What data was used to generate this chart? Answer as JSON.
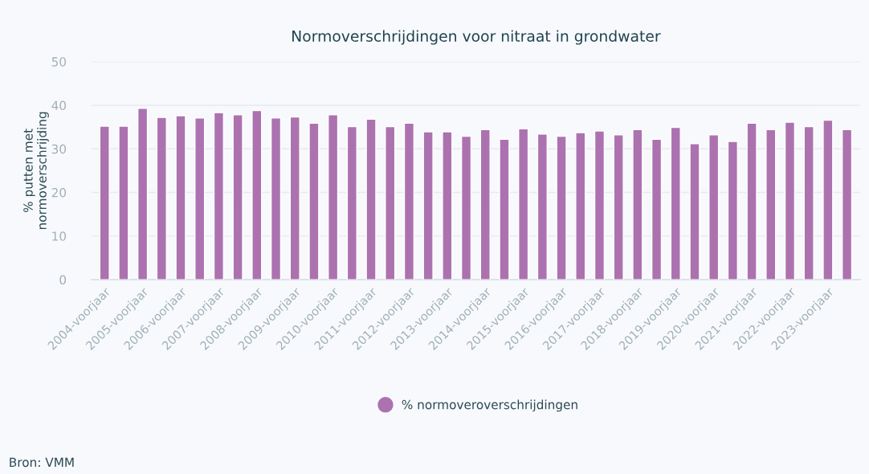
{
  "chart_data": {
    "type": "bar",
    "title": "Normoverschrijdingen voor nitraat in grondwater",
    "ylabel": "% putten met\nnormoverschrijding",
    "categories": [
      "2004-voorjaar",
      null,
      "2005-voorjaar",
      null,
      "2006-voorjaar",
      null,
      "2007-voorjaar",
      null,
      "2008-voorjaar",
      null,
      "2009-voorjaar",
      null,
      "2010-voorjaar",
      null,
      "2011-voorjaar",
      null,
      "2012-voorjaar",
      null,
      "2013-voorjaar",
      null,
      "2014-voorjaar",
      null,
      "2015-voorjaar",
      null,
      "2016-voorjaar",
      null,
      "2017-voorjaar",
      null,
      "2018-voorjaar",
      null,
      "2019-voorjaar",
      null,
      "2020-voorjaar",
      null,
      "2021-voorjaar",
      null,
      "2022-voorjaar",
      null,
      "2023-voorjaar",
      null
    ],
    "series": [
      {
        "name": "% normoveroverschrijdingen",
        "color": "#ac72b0",
        "values": [
          35.2,
          35.2,
          39.3,
          37.2,
          37.6,
          37.1,
          38.3,
          37.8,
          38.8,
          37.1,
          37.3,
          35.9,
          37.8,
          35.1,
          36.8,
          35.1,
          35.9,
          33.9,
          33.9,
          32.9,
          34.4,
          32.2,
          34.6,
          33.4,
          32.9,
          33.7,
          34.1,
          33.2,
          34.4,
          32.2,
          34.9,
          31.2,
          33.2,
          31.7,
          35.9,
          34.4,
          36.1,
          35.1,
          36.6,
          34.4
        ]
      }
    ],
    "ylim": [
      0,
      50
    ],
    "yticks": [
      0,
      10,
      20,
      30,
      40,
      50
    ],
    "grid": "y",
    "legend": "bottom",
    "marker": "circle",
    "annotations": [
      "Bron: VMM"
    ]
  }
}
